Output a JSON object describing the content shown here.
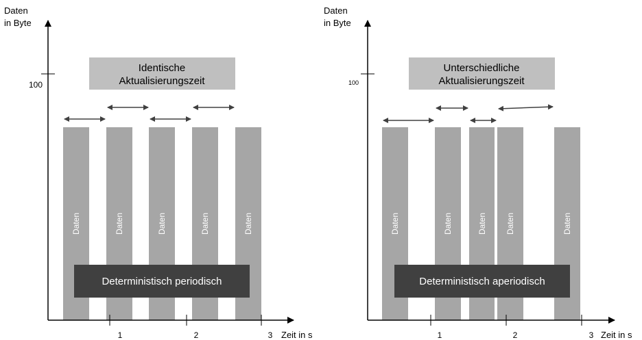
{
  "panels": [
    {
      "y_axis_label_line1": "Daten",
      "y_axis_label_line2": "in Byte",
      "y_tick_label": "100",
      "x_axis_label": "Zeit in s",
      "x_tick_labels": [
        "1",
        "2",
        "3"
      ],
      "header_line1": "Identische",
      "header_line2": "Aktualisierungszeit",
      "footer_label": "Deterministisch periodisch",
      "bar_label": "Daten",
      "bar_count": 5
    },
    {
      "y_axis_label_line1": "Daten",
      "y_axis_label_line2": "in Byte",
      "y_tick_label": "100",
      "x_axis_label": "Zeit in s",
      "x_tick_labels": [
        "1",
        "2",
        "3"
      ],
      "header_line1": "Unterschiedliche",
      "header_line2": "Aktualisierungszeit",
      "footer_label": "Deterministisch aperiodisch",
      "bar_label": "Daten",
      "bar_count": 5
    }
  ],
  "colors": {
    "bar": "#a6a6a6",
    "header_box": "#bfbfbf",
    "footer_box": "#404040",
    "axis": "#000000",
    "arrow": "#404040"
  }
}
